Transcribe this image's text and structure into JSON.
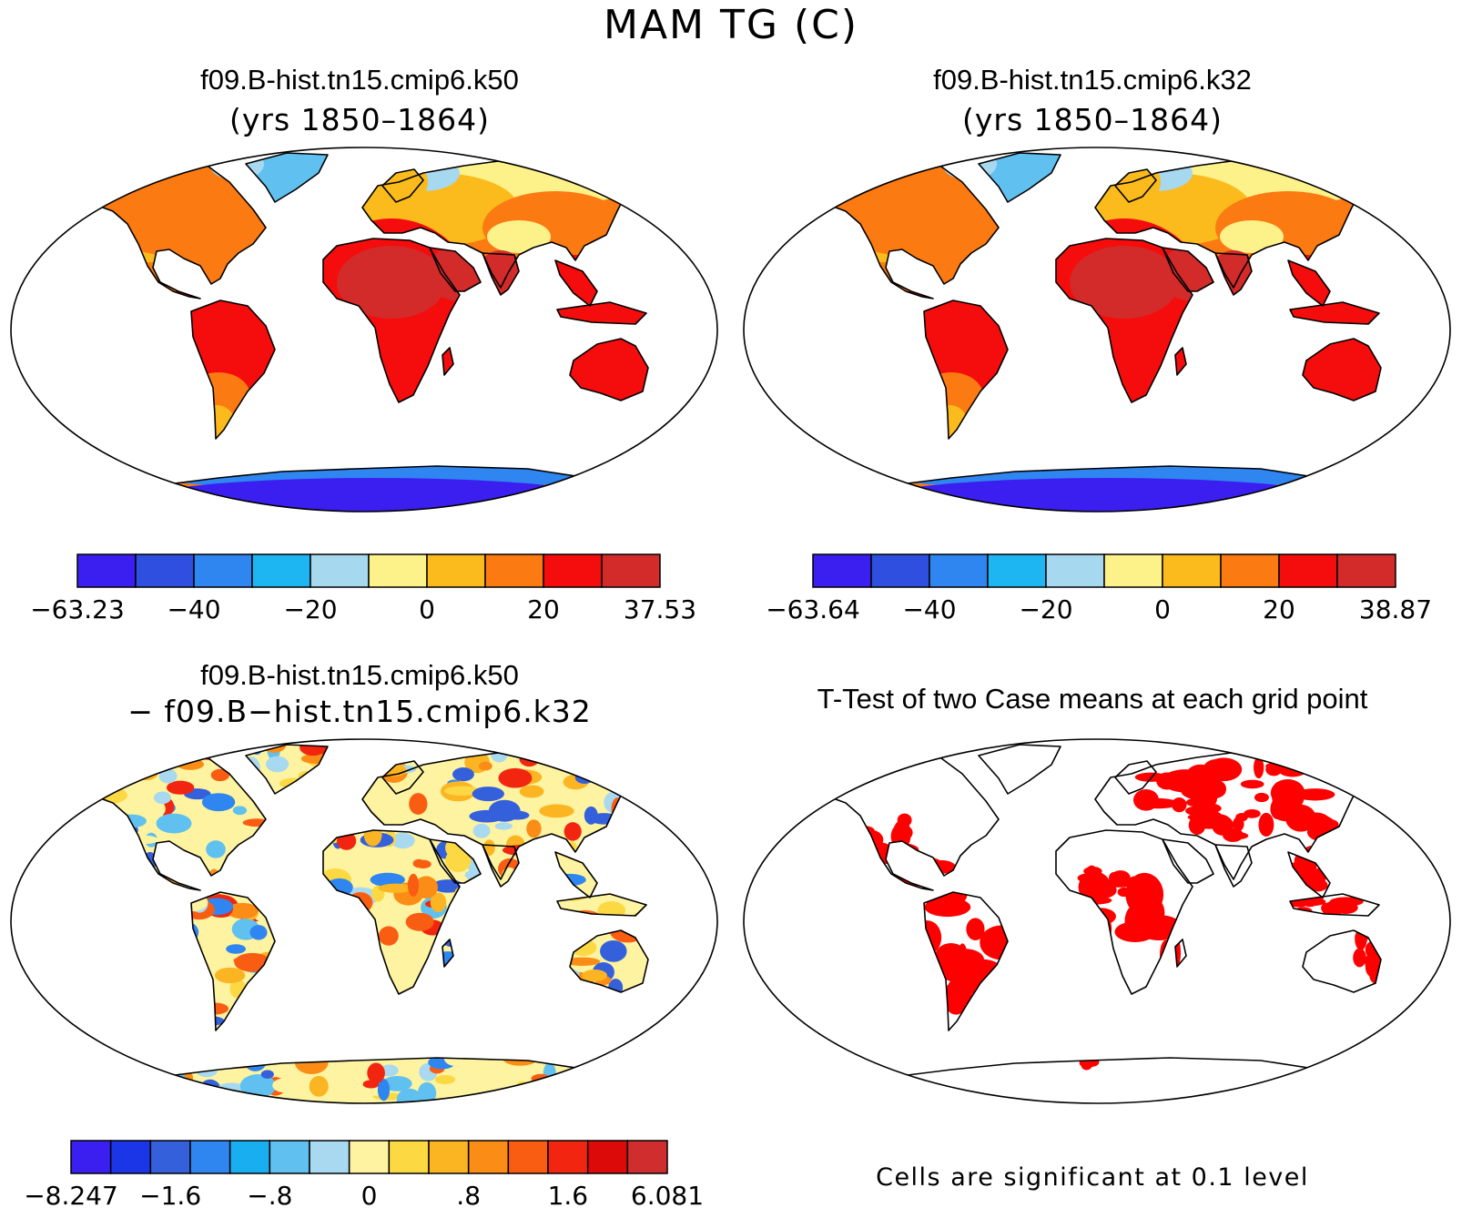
{
  "title": "MAM TG (C)",
  "panels": [
    {
      "id": "k50",
      "title": "f09.B-hist.tn15.cmip6.k50",
      "subtitle": "(yrs 1850–1864)",
      "colorbar": {
        "colors": [
          "#3b1ff0",
          "#2f4fe0",
          "#2f86f0",
          "#1db6f2",
          "#a6d8f0",
          "#fdf28a",
          "#fbbb1d",
          "#fb7a12",
          "#f40d0c",
          "#d32a2a"
        ],
        "labels": [
          "−63.23",
          "−40",
          "−20",
          "0",
          "20",
          "37.53"
        ]
      }
    },
    {
      "id": "k32",
      "title": "f09.B-hist.tn15.cmip6.k32",
      "subtitle": "(yrs 1850–1864)",
      "colorbar": {
        "colors": [
          "#3b1ff0",
          "#2f4fe0",
          "#2f86f0",
          "#1db6f2",
          "#a6d8f0",
          "#fdf28a",
          "#fbbb1d",
          "#fb7a12",
          "#f40d0c",
          "#d32a2a"
        ],
        "labels": [
          "−63.64",
          "−40",
          "−20",
          "0",
          "20",
          "38.87"
        ]
      }
    },
    {
      "id": "diff",
      "title": "f09.B-hist.tn15.cmip6.k50",
      "subtitle": "− f09.B−hist.tn15.cmip6.k32",
      "colorbar": {
        "colors": [
          "#3b1ff0",
          "#1b36e6",
          "#3560dc",
          "#2f86f0",
          "#18aef0",
          "#60c0ef",
          "#a9d9f0",
          "#fdf3a0",
          "#fcd843",
          "#fbb523",
          "#fb8d16",
          "#f95d12",
          "#f22610",
          "#dd0a0a",
          "#d02e2e"
        ],
        "labels": [
          "−8.247",
          "−1.6",
          "−.8",
          "0",
          ".8",
          "1.6",
          "6.081"
        ]
      }
    },
    {
      "id": "ttest",
      "title": "T-Test of two Case means at each grid point",
      "note": "Cells are significant at 0.1 level",
      "sig_color": "#ff0000"
    }
  ]
}
